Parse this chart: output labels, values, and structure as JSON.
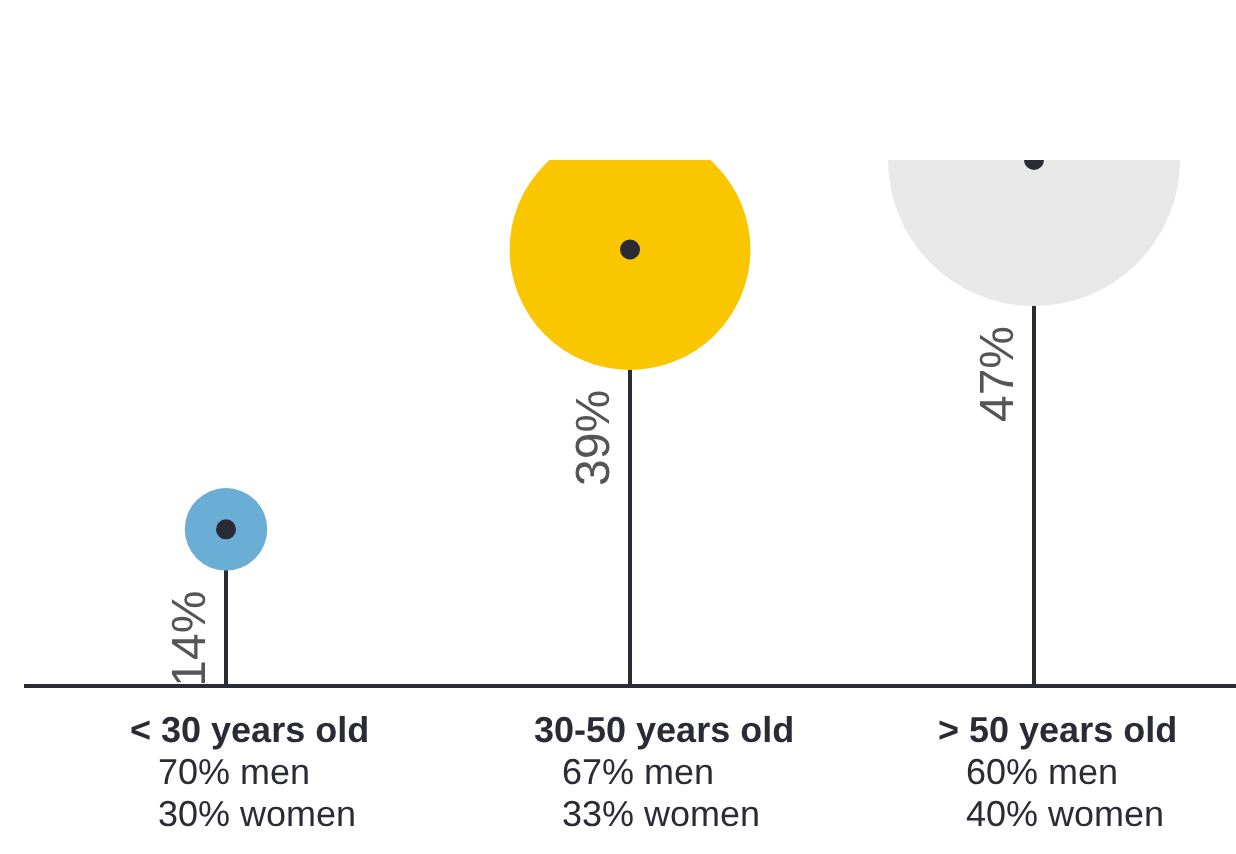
{
  "chart_data": {
    "type": "lollipop",
    "categories": [
      "< 30 years old\n70% men\n30% women",
      "30-50 years old\n67% men\n33% women",
      "> 50 years old\n60% men\n40% women"
    ],
    "values": [
      14,
      39,
      47
    ],
    "colors": [
      "#6aaed6",
      "#f9c600",
      "#e8e8e8"
    ],
    "sizes": [
      0.08,
      0.68,
      1
    ],
    "value_labels": [
      "14%",
      "39%",
      "47%"
    ]
  }
}
